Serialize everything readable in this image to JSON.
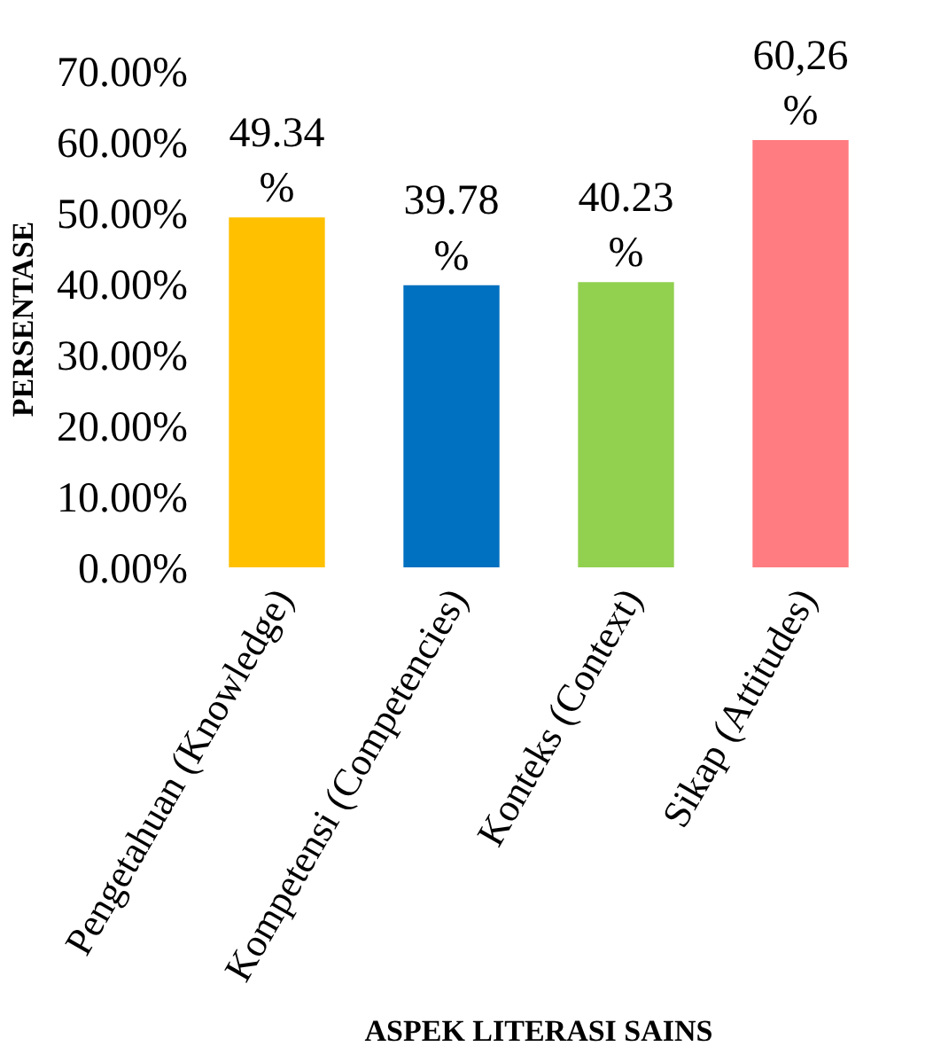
{
  "chart_data": {
    "type": "bar",
    "xlabel": "ASPEK LITERASI SAINS",
    "ylabel": "PERSENTASE",
    "categories": [
      "Pengetahuan (Knowledge)",
      "Kompetensi (Competencies)",
      "Konteks (Context)",
      "Sikap (Attitudes)"
    ],
    "values": [
      49.34,
      39.78,
      40.23,
      60.26
    ],
    "colors": [
      "#ffc000",
      "#0070c0",
      "#92d050",
      "#ff7c80"
    ],
    "value_labels": [
      "49.34 %",
      "39.78 %",
      "40.23 %",
      "60,26 %"
    ],
    "ylim": [
      0,
      70
    ],
    "yticks": [
      {
        "value": 0,
        "label": "0.00%"
      },
      {
        "value": 10,
        "label": "10.00%"
      },
      {
        "value": 20,
        "label": "20.00%"
      },
      {
        "value": 30,
        "label": "30.00%"
      },
      {
        "value": 40,
        "label": "40.00%"
      },
      {
        "value": 50,
        "label": "50.00%"
      },
      {
        "value": 60,
        "label": "60.00%"
      },
      {
        "value": 70,
        "label": "70.00%"
      }
    ],
    "legend": false
  }
}
